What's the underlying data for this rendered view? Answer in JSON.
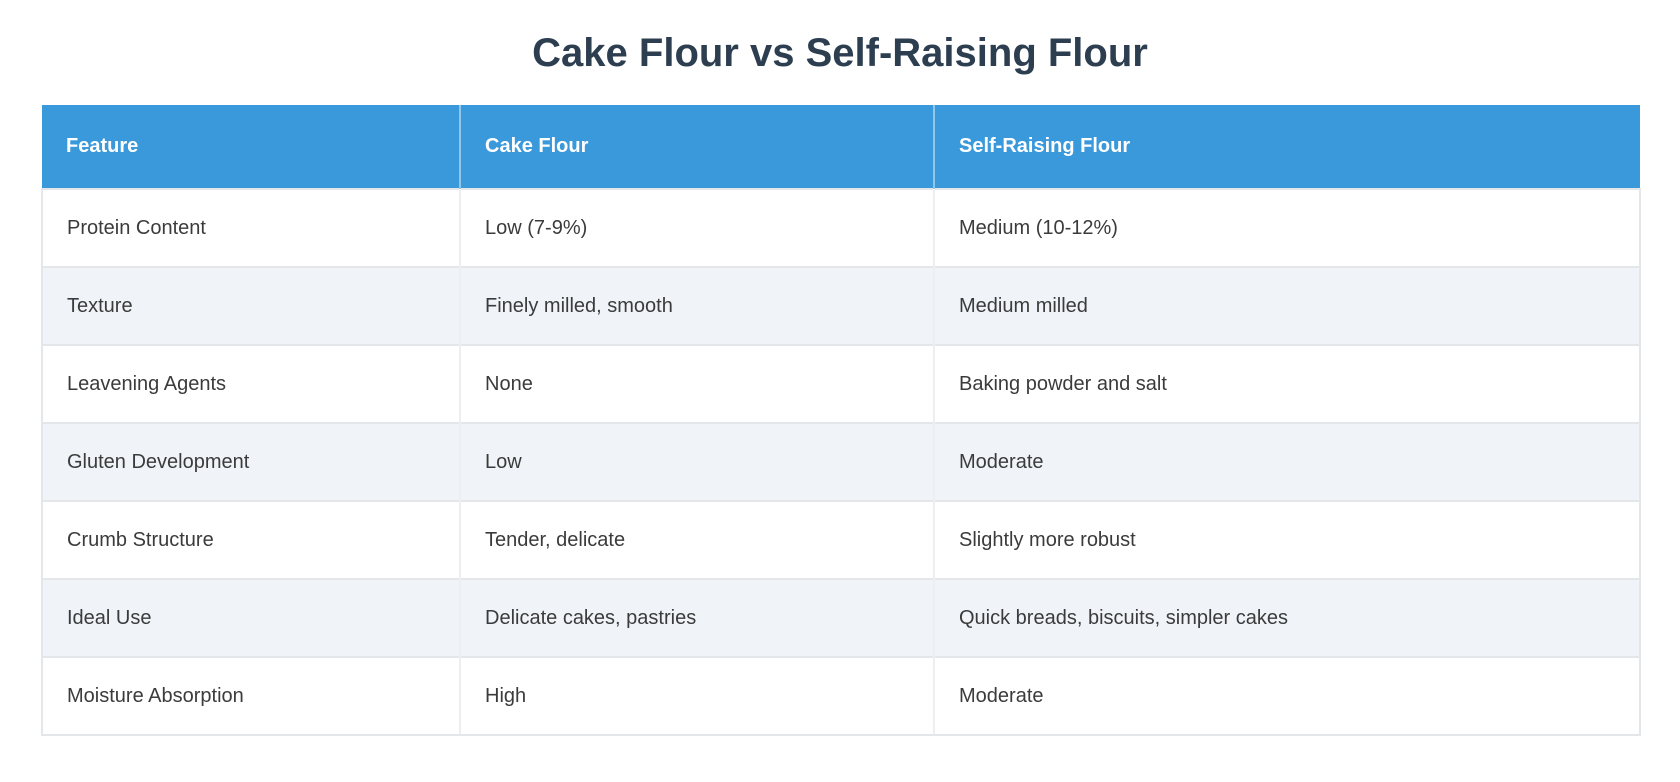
{
  "chart_data": {
    "type": "table",
    "title": "Cake Flour vs Self-Raising Flour",
    "columns": [
      "Feature",
      "Cake Flour",
      "Self-Raising Flour"
    ],
    "rows": [
      [
        "Protein Content",
        "Low (7-9%)",
        "Medium (10-12%)"
      ],
      [
        "Texture",
        "Finely milled, smooth",
        "Medium milled"
      ],
      [
        "Leavening Agents",
        "None",
        "Baking powder and salt"
      ],
      [
        "Gluten Development",
        "Low",
        "Moderate"
      ],
      [
        "Crumb Structure",
        "Tender, delicate",
        "Slightly more robust"
      ],
      [
        "Ideal Use",
        "Delicate cakes, pastries",
        "Quick breads, biscuits, simpler cakes"
      ],
      [
        "Moisture Absorption",
        "High",
        "Moderate"
      ]
    ],
    "legend": "none",
    "grid": "row-and-column-borders"
  },
  "colors": {
    "header_bg": "#3999db",
    "header_text": "#ffffff",
    "title_text": "#2c3e50",
    "body_text": "#3b3b3b",
    "row_alt_bg": "#f0f4f8",
    "border": "#e4e7ea",
    "page_bg": "#ffffff"
  }
}
